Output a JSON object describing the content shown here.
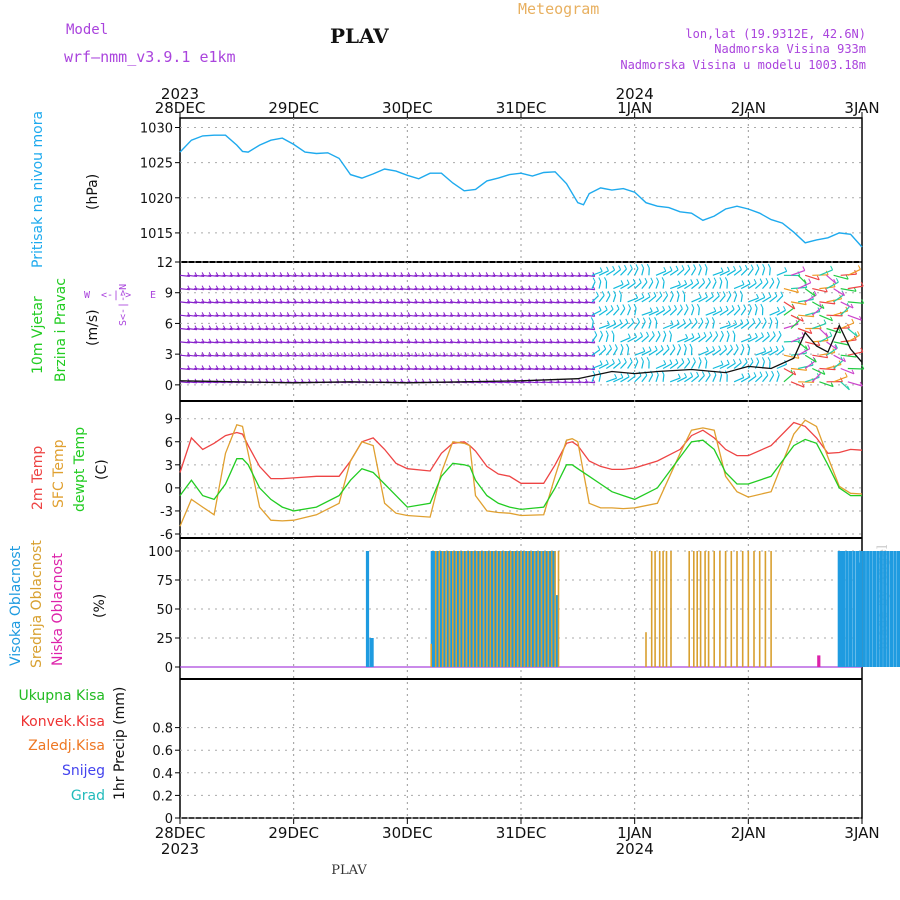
{
  "header": {
    "model_label": "Model",
    "model_name": "wrf—nmm_v3.9.1  e1km",
    "title": "PLAV",
    "meteogram_label": "Meteogram",
    "lonlat": "lon,lat (19.9312E, 42.6N)",
    "elevation": "Nadmorska Visina 933m",
    "model_elevation": "Nadmorska Visina u modelu 1003.18m",
    "footer_station": "PLAV",
    "watermark": "made by Angel"
  },
  "colors": {
    "pressure": "#1eaaee",
    "t2m": "#ee4444",
    "tsfc": "#e0a030",
    "dewpt": "#22cc22",
    "cloud_high": "#1e9be0",
    "cloud_mid": "#d8a030",
    "cloud_low": "#dd22aa",
    "purple": "#aa44dd",
    "precip_total": "#22bb22",
    "precip_conv": "#ee3333",
    "precip_frz": "#ee7722",
    "precip_snow": "#4444ee",
    "precip_grad": "#22bbbb",
    "wind_main": "#8822cc",
    "wind_alt": "#11bbdd"
  },
  "time_axis": {
    "top_years": [
      {
        "day": 0,
        "label": "2023"
      },
      {
        "day": 4,
        "label": "2024"
      }
    ],
    "bottom_years": [
      {
        "day": 0,
        "label": "2023"
      },
      {
        "day": 4,
        "label": "2024"
      }
    ],
    "days": [
      "28DEC",
      "29DEC",
      "30DEC",
      "31DEC",
      "1JAN",
      "2JAN",
      "3JAN"
    ]
  },
  "panel_labels": {
    "pressure": {
      "name": "Pritisak na nivou mora",
      "unit": "(hPa)"
    },
    "wind": {
      "name1": "10m Vjetar",
      "name2": "Brzina i Pravac",
      "unit": "(m/s)",
      "compass_n": "N",
      "compass_s": "S",
      "compass_w": "W",
      "compass_e": "E",
      "compass_vert": "S<-|->N",
      "compass_horiz": "<-|->"
    },
    "temp": {
      "t2m": "2m Temp",
      "tsfc": "SFC Temp",
      "dewpt": "dewpt Temp",
      "unit": "(C)"
    },
    "cloud": {
      "high": "Visoka Oblacnost",
      "mid": "Srednja Oblacnost",
      "low": "Niska Oblacnost",
      "unit": "(%)"
    },
    "precip": {
      "total": "Ukupna Kisa",
      "conv": "Konvek.Kisa",
      "frz": "Zaledj.Kisa",
      "snow": "Snijeg",
      "grad": "Grad",
      "unit": "1hr Precip (mm)"
    }
  },
  "chart_data": [
    {
      "type": "line",
      "name": "pressure",
      "ylim": [
        1012,
        1030.5
      ],
      "yticks": [
        1015,
        1020,
        1025,
        1030
      ],
      "x_days": [
        0,
        0.1,
        0.2,
        0.3,
        0.4,
        0.5,
        0.55,
        0.6,
        0.7,
        0.8,
        0.9,
        1.0,
        1.1,
        1.2,
        1.3,
        1.4,
        1.5,
        1.6,
        1.7,
        1.8,
        1.9,
        2.0,
        2.1,
        2.2,
        2.3,
        2.4,
        2.5,
        2.6,
        2.7,
        2.8,
        2.9,
        3.0,
        3.1,
        3.2,
        3.3,
        3.4,
        3.5,
        3.55,
        3.6,
        3.7,
        3.8,
        3.9,
        4.0,
        4.1,
        4.2,
        4.3,
        4.4,
        4.5,
        4.6,
        4.7,
        4.8,
        4.9,
        5.0,
        5.1,
        5.2,
        5.3,
        5.4,
        5.5,
        5.6,
        5.7,
        5.8,
        5.9,
        6.0
      ],
      "values": [
        1026.5,
        1028.2,
        1028.8,
        1028.9,
        1028.9,
        1027.5,
        1026.6,
        1026.5,
        1027.5,
        1028.2,
        1028.5,
        1027.6,
        1026.5,
        1026.3,
        1026.4,
        1025.6,
        1023.3,
        1022.8,
        1023.4,
        1024.1,
        1023.8,
        1023.2,
        1022.7,
        1023.5,
        1023.5,
        1022.1,
        1021.0,
        1021.2,
        1022.4,
        1022.8,
        1023.3,
        1023.5,
        1023.1,
        1023.6,
        1023.7,
        1022.0,
        1019.3,
        1019.0,
        1020.6,
        1021.4,
        1021.1,
        1021.3,
        1020.8,
        1019.3,
        1018.8,
        1018.6,
        1018.0,
        1017.8,
        1016.8,
        1017.4,
        1018.4,
        1018.8,
        1018.4,
        1017.8,
        1016.9,
        1016.4,
        1015.1,
        1013.6,
        1014.0,
        1014.3,
        1015.0,
        1014.8,
        1013.0
      ]
    },
    {
      "type": "line",
      "name": "10m wind speed",
      "ylim": [
        -0.6,
        12
      ],
      "yticks": [
        0,
        3,
        6,
        9,
        12
      ],
      "x_days": [
        0,
        0.5,
        1.0,
        1.5,
        2.0,
        2.5,
        3.0,
        3.5,
        3.8,
        4.0,
        4.2,
        4.5,
        4.8,
        5.0,
        5.2,
        5.4,
        5.5,
        5.6,
        5.7,
        5.8,
        5.9,
        6.0
      ],
      "values": [
        0.4,
        0.3,
        0.2,
        0.3,
        0.2,
        0.3,
        0.4,
        0.6,
        1.3,
        1.1,
        1.3,
        1.5,
        1.2,
        1.8,
        1.6,
        2.6,
        5.1,
        3.8,
        3.2,
        5.8,
        3.5,
        2.2
      ]
    },
    {
      "type": "line",
      "name": "temperature",
      "ylim": [
        -6,
        10
      ],
      "yticks": [
        -6,
        -3,
        0,
        3,
        6,
        9
      ],
      "x_days": [
        0,
        0.1,
        0.2,
        0.3,
        0.4,
        0.5,
        0.55,
        0.6,
        0.7,
        0.8,
        0.9,
        1.0,
        1.2,
        1.4,
        1.5,
        1.6,
        1.7,
        1.8,
        1.9,
        2.0,
        2.2,
        2.3,
        2.4,
        2.5,
        2.55,
        2.6,
        2.7,
        2.8,
        2.9,
        3.0,
        3.2,
        3.3,
        3.4,
        3.45,
        3.5,
        3.6,
        3.7,
        3.8,
        3.9,
        4.0,
        4.2,
        4.4,
        4.5,
        4.6,
        4.7,
        4.8,
        4.9,
        5.0,
        5.2,
        5.4,
        5.5,
        5.6,
        5.7,
        5.8,
        5.9,
        6.0
      ],
      "series": [
        {
          "name": "2m Temp",
          "values": [
            2.0,
            6.5,
            5.0,
            5.8,
            6.8,
            7.2,
            7.0,
            5.5,
            2.8,
            1.2,
            1.2,
            1.3,
            1.5,
            1.5,
            3.5,
            6.0,
            6.5,
            5.0,
            3.2,
            2.5,
            2.2,
            4.5,
            5.8,
            6.0,
            5.5,
            4.8,
            2.8,
            1.8,
            1.5,
            0.6,
            0.6,
            3.0,
            5.8,
            6.0,
            5.5,
            3.5,
            2.8,
            2.4,
            2.4,
            2.6,
            3.5,
            5.0,
            6.8,
            7.5,
            6.5,
            5.0,
            4.2,
            4.2,
            5.5,
            8.5,
            8.0,
            6.5,
            4.5,
            4.6,
            5.0,
            4.9
          ]
        },
        {
          "name": "SFC Temp",
          "values": [
            -5.0,
            -1.5,
            -2.5,
            -3.5,
            4.5,
            8.2,
            8.0,
            4.5,
            -2.5,
            -4.2,
            -4.3,
            -4.2,
            -3.5,
            -2.0,
            3.5,
            6.0,
            5.5,
            -2.0,
            -3.3,
            -3.6,
            -3.8,
            2.0,
            6.0,
            5.8,
            5.5,
            -1.0,
            -3.0,
            -3.2,
            -3.3,
            -3.6,
            -3.5,
            1.5,
            6.2,
            6.4,
            6.0,
            -2.0,
            -2.6,
            -2.6,
            -2.7,
            -2.6,
            -2.0,
            4.5,
            7.5,
            7.8,
            7.5,
            1.5,
            -0.5,
            -1.2,
            -0.5,
            7.0,
            8.8,
            8.0,
            4.0,
            0.2,
            -0.7,
            -0.8
          ]
        },
        {
          "name": "dewpt Temp",
          "values": [
            -1.0,
            1.0,
            -1.0,
            -1.5,
            0.5,
            3.8,
            3.8,
            3.0,
            0.0,
            -1.5,
            -2.5,
            -3.0,
            -2.5,
            -1.0,
            1.0,
            2.5,
            2.0,
            0.5,
            -1.0,
            -2.5,
            -2.0,
            1.5,
            3.2,
            3.0,
            2.8,
            1.0,
            -1.0,
            -2.0,
            -2.5,
            -2.8,
            -2.5,
            0.0,
            3.0,
            3.0,
            2.5,
            1.5,
            0.5,
            -0.5,
            -1.0,
            -1.5,
            0.0,
            4.0,
            6.0,
            6.2,
            5.0,
            2.0,
            0.5,
            0.5,
            1.5,
            5.5,
            6.3,
            5.8,
            3.0,
            0.0,
            -1.0,
            -1.0
          ]
        }
      ]
    },
    {
      "type": "bar",
      "name": "cloud cover",
      "ylim": [
        0,
        100
      ],
      "yticks": [
        0,
        25,
        50,
        75,
        100
      ],
      "series": [
        {
          "name": "Visoka Oblacnost",
          "points": [
            [
              1.65,
              100
            ],
            [
              1.68,
              25
            ],
            [
              1.69,
              25
            ],
            [
              2.22,
              100
            ],
            [
              2.24,
              100
            ],
            [
              2.27,
              100
            ],
            [
              2.3,
              100
            ],
            [
              2.33,
              100
            ],
            [
              2.36,
              100
            ],
            [
              2.39,
              100
            ],
            [
              2.42,
              100
            ],
            [
              2.45,
              100
            ],
            [
              2.48,
              100
            ],
            [
              2.51,
              100
            ],
            [
              2.54,
              100
            ],
            [
              2.57,
              100
            ],
            [
              2.6,
              100
            ],
            [
              2.63,
              100
            ],
            [
              2.66,
              100
            ],
            [
              2.69,
              100
            ],
            [
              2.72,
              100
            ],
            [
              2.75,
              100
            ],
            [
              2.78,
              100
            ],
            [
              2.81,
              100
            ],
            [
              2.84,
              100
            ],
            [
              2.87,
              100
            ],
            [
              2.9,
              100
            ],
            [
              2.93,
              100
            ],
            [
              2.96,
              100
            ],
            [
              2.99,
              100
            ],
            [
              3.02,
              100
            ],
            [
              3.05,
              100
            ],
            [
              3.08,
              100
            ],
            [
              3.11,
              100
            ],
            [
              3.14,
              100
            ],
            [
              3.17,
              100
            ],
            [
              3.2,
              100
            ],
            [
              3.23,
              100
            ],
            [
              3.26,
              100
            ],
            [
              3.29,
              100
            ],
            [
              3.32,
              62
            ],
            [
              5.8,
              100
            ],
            [
              5.82,
              100
            ],
            [
              5.84,
              100
            ],
            [
              5.87,
              100
            ],
            [
              5.9,
              100
            ],
            [
              5.93,
              100
            ],
            [
              5.96,
              100
            ],
            [
              5.99,
              100
            ],
            [
              6.02,
              100
            ],
            [
              6.05,
              100
            ],
            [
              6.08,
              100
            ],
            [
              6.11,
              100
            ],
            [
              6.14,
              100
            ],
            [
              6.17,
              100
            ],
            [
              6.2,
              100
            ],
            [
              6.23,
              100
            ],
            [
              6.26,
              100
            ],
            [
              6.29,
              100
            ],
            [
              6.32,
              100
            ],
            [
              6.35,
              100
            ],
            [
              6.38,
              100
            ],
            [
              5.98,
              90
            ]
          ]
        },
        {
          "name": "Srednja Oblacnost",
          "points": [
            [
              2.21,
              20
            ],
            [
              2.25,
              100
            ],
            [
              2.28,
              100
            ],
            [
              2.31,
              100
            ],
            [
              2.34,
              100
            ],
            [
              2.37,
              100
            ],
            [
              2.4,
              100
            ],
            [
              2.43,
              100
            ],
            [
              2.46,
              100
            ],
            [
              2.49,
              100
            ],
            [
              2.52,
              100
            ],
            [
              2.55,
              100
            ],
            [
              2.58,
              100
            ],
            [
              2.61,
              100
            ],
            [
              2.64,
              100
            ],
            [
              2.67,
              100
            ],
            [
              2.7,
              100
            ],
            [
              2.73,
              100
            ],
            [
              2.76,
              100
            ],
            [
              2.79,
              100
            ],
            [
              2.82,
              100
            ],
            [
              2.85,
              100
            ],
            [
              2.88,
              100
            ],
            [
              2.91,
              100
            ],
            [
              2.94,
              100
            ],
            [
              2.97,
              100
            ],
            [
              3.0,
              100
            ],
            [
              3.03,
              100
            ],
            [
              3.06,
              100
            ],
            [
              3.09,
              100
            ],
            [
              3.12,
              100
            ],
            [
              3.15,
              100
            ],
            [
              3.18,
              100
            ],
            [
              3.21,
              100
            ],
            [
              3.24,
              100
            ],
            [
              3.27,
              100
            ],
            [
              3.3,
              100
            ],
            [
              3.33,
              100
            ],
            [
              4.1,
              30
            ],
            [
              4.15,
              100
            ],
            [
              4.18,
              100
            ],
            [
              4.22,
              100
            ],
            [
              4.25,
              100
            ],
            [
              4.28,
              100
            ],
            [
              4.32,
              100
            ],
            [
              4.48,
              100
            ],
            [
              4.52,
              100
            ],
            [
              4.55,
              100
            ],
            [
              4.58,
              100
            ],
            [
              4.62,
              100
            ],
            [
              4.65,
              100
            ],
            [
              4.7,
              100
            ],
            [
              4.75,
              100
            ],
            [
              4.8,
              100
            ],
            [
              4.85,
              100
            ],
            [
              4.9,
              100
            ],
            [
              4.95,
              100
            ],
            [
              5.0,
              100
            ],
            [
              5.05,
              100
            ],
            [
              5.1,
              100
            ],
            [
              5.15,
              100
            ],
            [
              5.2,
              100
            ]
          ]
        },
        {
          "name": "Niska Oblacnost",
          "points": [
            [
              5.62,
              10
            ]
          ]
        }
      ]
    },
    {
      "type": "bar",
      "name": "1hr precip",
      "ylim": [
        0,
        1
      ],
      "yticks": [
        0,
        0.2,
        0.4,
        0.6,
        0.8
      ],
      "series": [
        {
          "name": "Ukupna Kisa",
          "values": []
        },
        {
          "name": "Konvek.Kisa",
          "values": []
        },
        {
          "name": "Zaledj.Kisa",
          "values": []
        },
        {
          "name": "Snijeg",
          "values": []
        },
        {
          "name": "Grad",
          "values": []
        }
      ]
    }
  ]
}
